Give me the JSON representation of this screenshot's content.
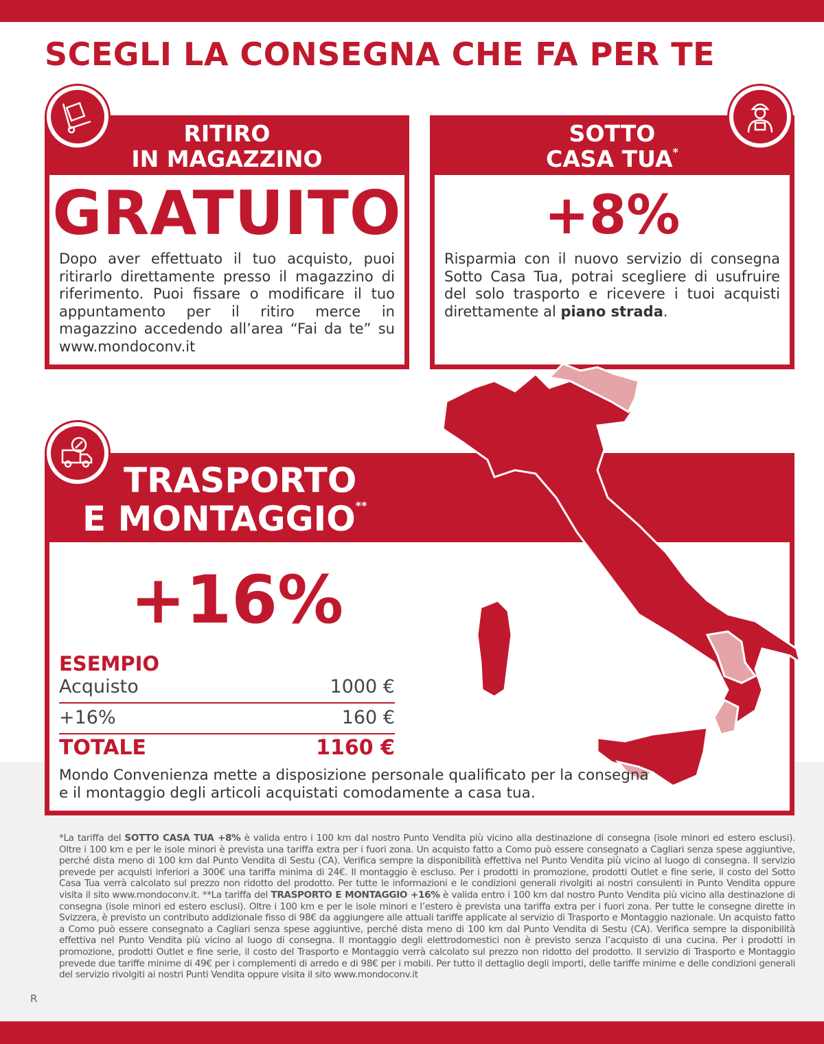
{
  "title": "SCEGLI LA CONSEGNA CHE FA PER TE",
  "colors": {
    "brand_red": "#c0192e",
    "light_red": "#e5a4a8"
  },
  "ritiro": {
    "icon": "hand-truck-icon",
    "header_line1": "RITIRO",
    "header_line2": "IN MAGAZZINO",
    "price": "GRATUITO",
    "description": "Dopo aver effettuato il tuo acquisto, puoi ritirarlo direttamente presso il magazzino di riferimento. Puoi fissare o modificare il tuo appuntamento per il ritiro merce in magazzino accedendo all’area “Fai da te” su www.mondoconv.it"
  },
  "sotto_casa": {
    "icon": "delivery-man-icon",
    "header_line1": "SOTTO",
    "header_line2": "CASA TUA",
    "marker": "*",
    "price": "+8%",
    "description_pre": "Risparmia con il nuovo servizio di consegna Sotto Casa Tua, potrai scegliere di usufruire del solo trasporto e ricevere i tuoi acquisti direttamente al ",
    "description_bold": "piano strada",
    "description_post": "."
  },
  "trasporto": {
    "icon": "truck-tools-icon",
    "header_line1": "TRASPORTO",
    "header_line2": "E MONTAGGIO",
    "marker": "**",
    "price": "+16%",
    "example": {
      "title": "ESEMPIO",
      "rows": [
        {
          "label": "Acquisto",
          "value": "1000 €"
        },
        {
          "label": "+16%",
          "value": "160 €"
        }
      ],
      "total_label": "TOTALE",
      "total_value": "1160 €"
    },
    "description": "Mondo Convenienza mette a disposizione personale qualificato per la consegna e il montaggio degli articoli acquistati comodamente a casa tua."
  },
  "footnote": {
    "p1": "*La tariffa del ",
    "b1": "SOTTO CASA TUA +8%",
    "p2": " è valida entro i 100 km dal nostro Punto Vendita più vicino alla destinazione di consegna (isole minori ed estero esclusi). Oltre i 100 km e per le isole minori è prevista una tariffa extra per i fuori zona. Un acquisto fatto a Como può essere consegnato a Cagliari senza spese aggiuntive, perché dista meno di 100 km dal Punto Vendita di Sestu (CA). Verifica sempre la disponibilità effettiva nel Punto Vendita più vicino al luogo di consegna. Il servizio prevede per acquisti inferiori a 300€ una tariffa minima di 24€. Il montaggio è escluso. Per i prodotti in promozione, prodotti Outlet e fine serie, il costo del Sotto Casa Tua verrà calcolato sul prezzo non ridotto del prodotto. Per tutte le informazioni e le condizioni generali rivolgiti ai nostri consulenti in Punto Vendita oppure visita il sito www.mondoconv.it. **La tariffa del ",
    "b2": "TRASPORTO E MONTAGGIO +16%",
    "p3": " è valida entro i 100 km dal nostro Punto Vendita più vicino alla destinazione di consegna (isole minori ed estero esclusi). Oltre i 100 km e per le isole minori e l’estero è prevista una tariffa extra per i fuori zona. Per tutte le consegne dirette in Svizzera, è previsto un contributo addizionale fisso di 98€ da aggiungere alle attuali tariffe applicate al servizio di Trasporto e Montaggio nazionale. Un acquisto fatto a Como può essere consegnato a Cagliari senza spese aggiuntive, perché dista meno di 100 km dal Punto Vendita di Sestu (CA). Verifica sempre la disponibilità effettiva nel Punto Vendita più vicino al luogo di consegna. Il montaggio degli elettrodomestici non è previsto senza l’acquisto di una cucina. Per i prodotti in promozione, prodotti Outlet e fine serie, il costo del Trasporto e Montaggio verrà calcolato sul prezzo non ridotto del prodotto. Il servizio di Trasporto e Montaggio prevede due tariffe minime di 49€ per i complementi di arredo e di 98€ per i mobili. Per tutto il dettaglio degli importi, delle tariffe minime e delle condizioni generali del servizio rivolgiti ai nostri Punti Vendita oppure visita il sito www.mondoconv.it"
  },
  "page_letter": "R"
}
